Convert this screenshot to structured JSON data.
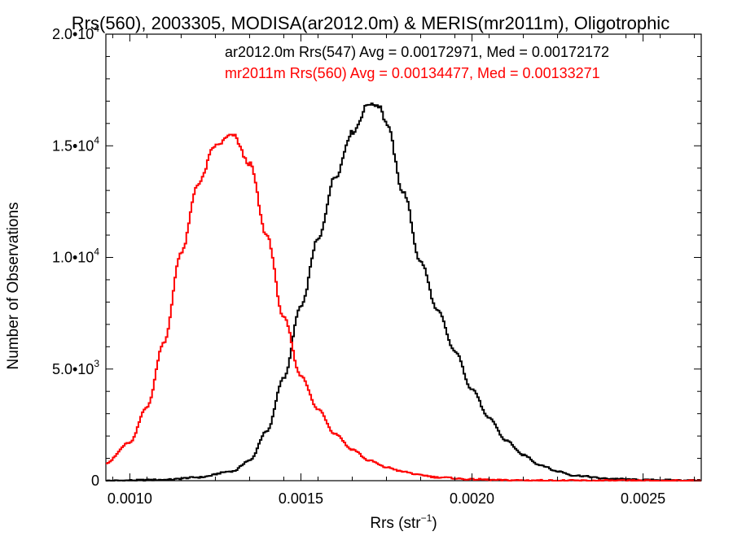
{
  "chart_data": {
    "type": "histogram-step",
    "title": "Rrs(560), 2003305, MODISA(ar2012.0m) & MERIS(mr2011m), Oligotrophic",
    "xlabel": "Rrs (str",
    "xlabel_superscript": "−1",
    "xlabel_suffix": ")",
    "ylabel": "Number of Observations",
    "xlim": [
      0.00093,
      0.00267
    ],
    "ylim": [
      0,
      20000
    ],
    "grid": false,
    "legend_position": "top-right",
    "xticks": [
      {
        "value": 0.001,
        "label": "0.0010"
      },
      {
        "value": 0.0015,
        "label": "0.0015"
      },
      {
        "value": 0.002,
        "label": "0.0020"
      },
      {
        "value": 0.0025,
        "label": "0.0025"
      }
    ],
    "yticks": [
      {
        "value": 0,
        "mantissa": "0",
        "exponent": ""
      },
      {
        "value": 5000,
        "mantissa": "5.0•10",
        "exponent": "3"
      },
      {
        "value": 10000,
        "mantissa": "1.0•10",
        "exponent": "4"
      },
      {
        "value": 15000,
        "mantissa": "1.5•10",
        "exponent": "4"
      },
      {
        "value": 20000,
        "mantissa": "2.0•10",
        "exponent": "4"
      }
    ],
    "series": [
      {
        "name": "ar2012.0m Rrs(547) Avg = 0.00172971, Med = 0.00172172",
        "color": "#000000",
        "peak": 16900,
        "points": [
          [
            0.00093,
            0
          ],
          [
            0.0011,
            40
          ],
          [
            0.0012,
            150
          ],
          [
            0.0013,
            420
          ],
          [
            0.00135,
            900
          ],
          [
            0.0014,
            2200
          ],
          [
            0.00145,
            4600
          ],
          [
            0.0015,
            7800
          ],
          [
            0.00155,
            10800
          ],
          [
            0.0016,
            13600
          ],
          [
            0.00165,
            15600
          ],
          [
            0.0017,
            16900
          ],
          [
            0.00173,
            16800
          ],
          [
            0.00175,
            16000
          ],
          [
            0.0018,
            12900
          ],
          [
            0.00185,
            9800
          ],
          [
            0.0019,
            7600
          ],
          [
            0.00195,
            5800
          ],
          [
            0.002,
            4100
          ],
          [
            0.00205,
            2800
          ],
          [
            0.0021,
            1800
          ],
          [
            0.00215,
            1150
          ],
          [
            0.0022,
            700
          ],
          [
            0.00225,
            420
          ],
          [
            0.0023,
            230
          ],
          [
            0.0024,
            90
          ],
          [
            0.0025,
            35
          ],
          [
            0.00267,
            10
          ]
        ]
      },
      {
        "name": "mr2011m Rrs(560) Avg = 0.00134477, Med = 0.00133271",
        "color": "#ff0000",
        "peak": 15500,
        "points": [
          [
            0.00093,
            800
          ],
          [
            0.001,
            1700
          ],
          [
            0.00105,
            3300
          ],
          [
            0.0011,
            6200
          ],
          [
            0.00115,
            10200
          ],
          [
            0.0012,
            13300
          ],
          [
            0.00125,
            15000
          ],
          [
            0.0013,
            15500
          ],
          [
            0.00135,
            14200
          ],
          [
            0.0014,
            11000
          ],
          [
            0.00145,
            7300
          ],
          [
            0.0015,
            4700
          ],
          [
            0.00155,
            3200
          ],
          [
            0.0016,
            2100
          ],
          [
            0.00165,
            1400
          ],
          [
            0.0017,
            900
          ],
          [
            0.00175,
            600
          ],
          [
            0.0018,
            400
          ],
          [
            0.00185,
            250
          ],
          [
            0.0019,
            150
          ],
          [
            0.002,
            60
          ],
          [
            0.0021,
            20
          ],
          [
            0.0023,
            5
          ],
          [
            0.00267,
            0
          ]
        ]
      }
    ]
  }
}
